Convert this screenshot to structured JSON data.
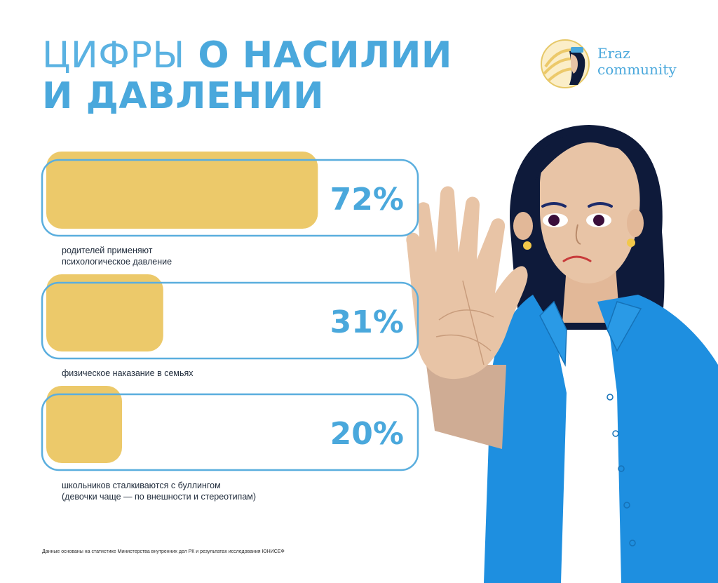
{
  "title": {
    "part_light": "ЦИФРЫ",
    "part_bold_1": "О НАСИЛИИ",
    "part_bold_2": "И ДАВЛЕНИИ"
  },
  "logo": {
    "line1": "Eraz",
    "line2": "community"
  },
  "colors": {
    "accent_blue": "#4aa8dc",
    "bar_fill": "#ecc96a",
    "frame_stroke": "#5aaede",
    "jacket": "#1e8fe0",
    "skin": "#e8c4a6",
    "hair": "#0e1a3a"
  },
  "chart_data": {
    "type": "bar",
    "orientation": "horizontal",
    "unit": "%",
    "xlim": [
      0,
      100
    ],
    "categories": [
      "родителей применяют\nпсихологическое давление",
      "физическое наказание в семьях",
      "школьников сталкиваются с буллингом\n(девочки чаще — по внешности и стереотипам)"
    ],
    "values": [
      72,
      31,
      20
    ],
    "value_labels": [
      "72%",
      "31%",
      "20%"
    ],
    "grid": false
  },
  "footnote": "Данные основаны на статистике Министерства внутренних дел РК и результатах исследования ЮНИСЕФ"
}
